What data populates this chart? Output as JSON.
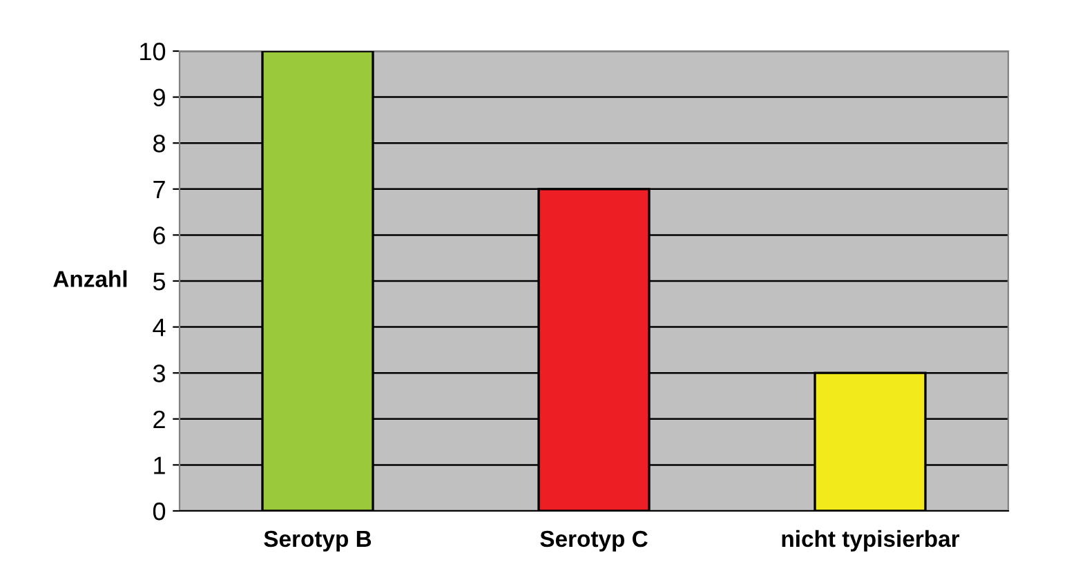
{
  "chart_data": {
    "type": "bar",
    "ylabel": "Anzahl",
    "categories": [
      "Serotyp B",
      "Serotyp C",
      "nicht typisierbar"
    ],
    "values": [
      10,
      7,
      3
    ],
    "colors": [
      "#9bc93c",
      "#ee1f24",
      "#f2ea1a"
    ],
    "ylim": [
      0,
      10
    ],
    "yticks": [
      0,
      1,
      2,
      3,
      4,
      5,
      6,
      7,
      8,
      9,
      10
    ],
    "grid": "y"
  }
}
